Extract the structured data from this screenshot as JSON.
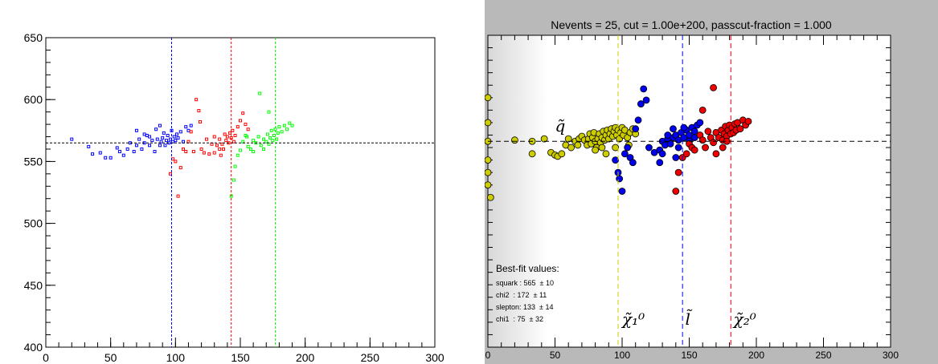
{
  "chart_data": [
    {
      "type": "scatter",
      "title": "",
      "xlabel": "",
      "ylabel": "",
      "xlim": [
        0,
        300
      ],
      "ylim": [
        400,
        650
      ],
      "x_ticks": [
        "0",
        "50",
        "100",
        "150",
        "200",
        "250",
        "300"
      ],
      "y_ticks": [
        "400",
        "450",
        "500",
        "550",
        "600",
        "650"
      ],
      "reference_lines": {
        "horizontal": 565,
        "vertical": [
          97,
          143,
          177
        ]
      },
      "series": [
        {
          "color": "#0000ff",
          "points": [
            [
              20,
              568
            ],
            [
              33,
              562
            ],
            [
              36,
              556
            ],
            [
              42,
              557
            ],
            [
              46,
              553
            ],
            [
              50,
              553
            ],
            [
              55,
              561
            ],
            [
              57,
              558
            ],
            [
              60,
              555
            ],
            [
              63,
              560
            ],
            [
              65,
              565
            ],
            [
              68,
              558
            ],
            [
              70,
              563
            ],
            [
              72,
              568
            ],
            [
              74,
              560
            ],
            [
              76,
              565
            ],
            [
              78,
              571
            ],
            [
              80,
              563
            ],
            [
              82,
              567
            ],
            [
              84,
              558
            ],
            [
              86,
              568
            ],
            [
              88,
              563
            ],
            [
              89,
              566
            ],
            [
              90,
              569
            ],
            [
              91,
              573
            ],
            [
              92,
              563
            ],
            [
              93,
              567
            ],
            [
              94,
              571
            ],
            [
              95,
              565
            ],
            [
              96,
              568
            ],
            [
              97,
              575
            ],
            [
              98,
              566
            ],
            [
              99,
              570
            ],
            [
              100,
              567
            ],
            [
              101,
              572
            ],
            [
              102,
              569
            ],
            [
              104,
              574
            ],
            [
              106,
              566
            ],
            [
              108,
              578
            ],
            [
              110,
              575
            ],
            [
              112,
              579
            ],
            [
              70,
              575
            ],
            [
              76,
              572
            ],
            [
              85,
              576
            ],
            [
              80,
              570
            ],
            [
              88,
              579
            ]
          ]
        },
        {
          "color": "#ff0000",
          "points": [
            [
              96,
              540
            ],
            [
              98,
              552
            ],
            [
              100,
              550
            ],
            [
              102,
              522
            ],
            [
              104,
              545
            ],
            [
              106,
              560
            ],
            [
              108,
              558
            ],
            [
              110,
              566
            ],
            [
              112,
              574
            ],
            [
              114,
              558
            ],
            [
              116,
              600
            ],
            [
              118,
              591
            ],
            [
              119,
              582
            ],
            [
              120,
              560
            ],
            [
              122,
              557
            ],
            [
              124,
              568
            ],
            [
              126,
              556
            ],
            [
              128,
              564
            ],
            [
              130,
              557
            ],
            [
              132,
              563
            ],
            [
              134,
              568
            ],
            [
              136,
              564
            ],
            [
              137,
              560
            ],
            [
              138,
              572
            ],
            [
              139,
              567
            ],
            [
              140,
              570
            ],
            [
              141,
              565
            ],
            [
              142,
              573
            ],
            [
              143,
              569
            ],
            [
              144,
              575
            ],
            [
              145,
              566
            ],
            [
              146,
              571
            ],
            [
              148,
              578
            ],
            [
              150,
              583
            ],
            [
              152,
              589
            ],
            [
              154,
              580
            ],
            [
              156,
              576
            ],
            [
              134,
              560
            ],
            [
              130,
              570
            ],
            [
              135,
              555
            ]
          ]
        },
        {
          "color": "#00ff00",
          "points": [
            [
              143,
              522
            ],
            [
              145,
              535
            ],
            [
              146,
              546
            ],
            [
              148,
              555
            ],
            [
              150,
              559
            ],
            [
              152,
              566
            ],
            [
              154,
              571
            ],
            [
              156,
              562
            ],
            [
              158,
              560
            ],
            [
              160,
              567
            ],
            [
              162,
              565
            ],
            [
              164,
              570
            ],
            [
              166,
              563
            ],
            [
              168,
              568
            ],
            [
              170,
              566
            ],
            [
              171,
              572
            ],
            [
              172,
              564
            ],
            [
              173,
              569
            ],
            [
              174,
              575
            ],
            [
              175,
              567
            ],
            [
              176,
              571
            ],
            [
              177,
              576
            ],
            [
              178,
              568
            ],
            [
              179,
              573
            ],
            [
              180,
              578
            ],
            [
              182,
              574
            ],
            [
              184,
              579
            ],
            [
              186,
              576
            ],
            [
              188,
              581
            ],
            [
              190,
              579
            ],
            [
              165,
              605
            ],
            [
              172,
              590
            ],
            [
              168,
              560
            ],
            [
              155,
              570
            ],
            [
              160,
              558
            ]
          ]
        }
      ]
    },
    {
      "type": "scatter",
      "title": "Nevents = 25, cut = 1.00e+200, passcut-fraction = 1.000",
      "xlabel": "",
      "ylabel": "",
      "xlim": [
        0,
        300
      ],
      "ylim": [
        400,
        650
      ],
      "x_ticks": [
        "0",
        "50",
        "100",
        "150",
        "200",
        "250",
        "300"
      ],
      "reference_lines": {
        "horizontal": 565,
        "vertical": [
          97,
          145,
          181
        ]
      },
      "line_labels": [
        {
          "text": "q̃",
          "x": 50,
          "y": 573
        },
        {
          "text": "χ̃₁⁰",
          "x": 100,
          "y": 418
        },
        {
          "text": "l̃",
          "x": 147,
          "y": 418
        },
        {
          "text": "χ̃₂⁰",
          "x": 183,
          "y": 418
        }
      ],
      "series": [
        {
          "color": "#cccc00",
          "points": [
            [
              0,
              600
            ],
            [
              0,
              580
            ],
            [
              0,
              565
            ],
            [
              0,
              550
            ],
            [
              0,
              540
            ],
            [
              0,
              530
            ],
            [
              2,
              520
            ],
            [
              20,
              566
            ],
            [
              33,
              565
            ],
            [
              33,
              555
            ],
            [
              42,
              567
            ],
            [
              47,
              556
            ],
            [
              50,
              554
            ],
            [
              52,
              553
            ],
            [
              55,
              555
            ],
            [
              58,
              562
            ],
            [
              60,
              567
            ],
            [
              62,
              560
            ],
            [
              65,
              565
            ],
            [
              67,
              562
            ],
            [
              68,
              567
            ],
            [
              70,
              569
            ],
            [
              72,
              566
            ],
            [
              74,
              562
            ],
            [
              75,
              567
            ],
            [
              76,
              571
            ],
            [
              77,
              563
            ],
            [
              78,
              568
            ],
            [
              79,
              572
            ],
            [
              80,
              565
            ],
            [
              81,
              560
            ],
            [
              82,
              567
            ],
            [
              83,
              571
            ],
            [
              84,
              564
            ],
            [
              85,
              568
            ],
            [
              86,
              573
            ],
            [
              87,
              566
            ],
            [
              88,
              570
            ],
            [
              89,
              574
            ],
            [
              90,
              567
            ],
            [
              91,
              571
            ],
            [
              92,
              575
            ],
            [
              93,
              569
            ],
            [
              94,
              573
            ],
            [
              95,
              576
            ],
            [
              96,
              570
            ],
            [
              97,
              574
            ],
            [
              98,
              567
            ],
            [
              99,
              572
            ],
            [
              100,
              576
            ],
            [
              101,
              570
            ],
            [
              102,
              574
            ],
            [
              104,
              568
            ],
            [
              106,
              572
            ],
            [
              108,
              575
            ],
            [
              110,
              571
            ],
            [
              105,
              562
            ],
            [
              95,
              560
            ],
            [
              88,
              555
            ],
            [
              85,
              560
            ],
            [
              80,
              558
            ]
          ]
        },
        {
          "color": "#0000ee",
          "points": [
            [
              95,
              550
            ],
            [
              97,
              540
            ],
            [
              98,
              535
            ],
            [
              100,
              525
            ],
            [
              102,
              555
            ],
            [
              104,
              560
            ],
            [
              106,
              552
            ],
            [
              108,
              548
            ],
            [
              110,
              575
            ],
            [
              112,
              582
            ],
            [
              114,
              595
            ],
            [
              116,
              607
            ],
            [
              118,
              598
            ],
            [
              120,
              560
            ],
            [
              124,
              556
            ],
            [
              128,
              558
            ],
            [
              130,
              565
            ],
            [
              132,
              562
            ],
            [
              134,
              567
            ],
            [
              136,
              563
            ],
            [
              138,
              568
            ],
            [
              140,
              570
            ],
            [
              142,
              566
            ],
            [
              144,
              572
            ],
            [
              146,
              568
            ],
            [
              148,
              574
            ],
            [
              150,
              570
            ],
            [
              152,
              576
            ],
            [
              154,
              573
            ],
            [
              156,
              578
            ],
            [
              130,
              555
            ],
            [
              134,
              570
            ],
            [
              138,
              575
            ],
            [
              142,
              560
            ],
            [
              146,
              576
            ],
            [
              150,
              565
            ],
            [
              154,
              568
            ],
            [
              158,
              580
            ],
            [
              140,
              552
            ],
            [
              128,
              548
            ]
          ]
        },
        {
          "color": "#ee0000",
          "points": [
            [
              140,
              525
            ],
            [
              142,
              540
            ],
            [
              145,
              552
            ],
            [
              148,
              555
            ],
            [
              150,
              563
            ],
            [
              152,
              560
            ],
            [
              154,
              558
            ],
            [
              158,
              570
            ],
            [
              160,
              566
            ],
            [
              162,
              560
            ],
            [
              164,
              573
            ],
            [
              166,
              568
            ],
            [
              168,
              564
            ],
            [
              170,
              572
            ],
            [
              172,
              568
            ],
            [
              174,
              574
            ],
            [
              175,
              566
            ],
            [
              176,
              571
            ],
            [
              177,
              577
            ],
            [
              178,
              569
            ],
            [
              179,
              574
            ],
            [
              180,
              578
            ],
            [
              181,
              571
            ],
            [
              182,
              576
            ],
            [
              183,
              572
            ],
            [
              184,
              579
            ],
            [
              185,
              574
            ],
            [
              186,
              580
            ],
            [
              188,
              575
            ],
            [
              190,
              582
            ],
            [
              192,
              578
            ],
            [
              194,
              581
            ],
            [
              168,
              608
            ],
            [
              160,
              590
            ],
            [
              175,
              560
            ],
            [
              170,
              555
            ],
            [
              178,
              565
            ]
          ]
        }
      ]
    }
  ],
  "legend": {
    "title": "Best-fit values:",
    "rows": [
      "squark : 565  ± 10",
      "chi2  : 172  ± 11",
      "slepton: 133  ± 14",
      "chi1  : 75  ± 32"
    ]
  }
}
